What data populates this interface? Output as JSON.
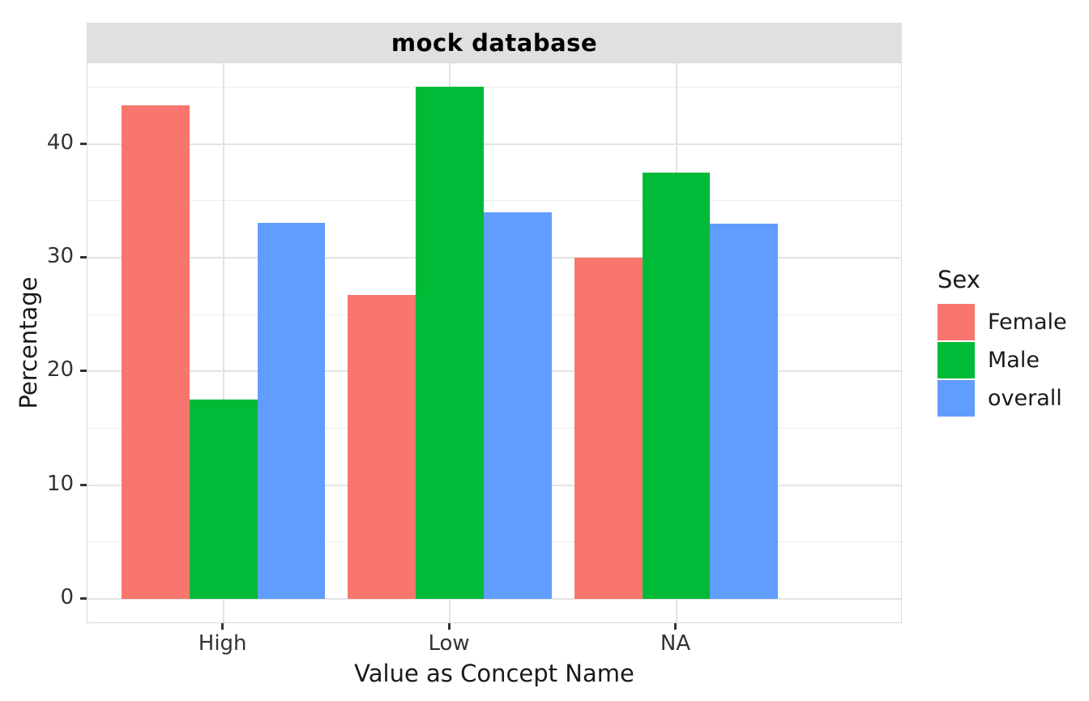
{
  "chart_data": {
    "type": "bar",
    "title": "mock database",
    "categories": [
      "High",
      "Low",
      "NA"
    ],
    "series": [
      {
        "name": "Female",
        "color": "#F8766D",
        "values": [
          43.4,
          26.7,
          30.0
        ]
      },
      {
        "name": "Male",
        "color": "#00BA38",
        "values": [
          17.5,
          45.0,
          37.5
        ]
      },
      {
        "name": "overall",
        "color": "#619CFF",
        "values": [
          33.1,
          34.0,
          33.0
        ]
      }
    ],
    "xlabel": "Value as Concept Name",
    "ylabel": "Percentage",
    "y_ticks": [
      0,
      10,
      20,
      30,
      40
    ],
    "y_minor_ticks": [
      5,
      15,
      25,
      35,
      45
    ],
    "ylim": [
      -2.2,
      47.1
    ],
    "grid": true,
    "bar_layout": {
      "dodge": true,
      "group_width": 0.9
    },
    "legend": {
      "title": "Sex",
      "position": "right",
      "entries": [
        {
          "label": "Female",
          "color": "#F8766D"
        },
        {
          "label": "Male",
          "color": "#00BA38"
        },
        {
          "label": "overall",
          "color": "#619CFF"
        }
      ]
    }
  },
  "colors": {
    "strip_background": "#E0E0E0",
    "panel_background": "#FFFFFF",
    "panel_border": "#D9D9D9",
    "grid_major": "#E3E3E3",
    "grid_minor": "#ECECEC",
    "tick_mark": "#333333",
    "tick_label": "#333333",
    "axis_title": "#1A1A1A",
    "title_text": "#000000"
  }
}
